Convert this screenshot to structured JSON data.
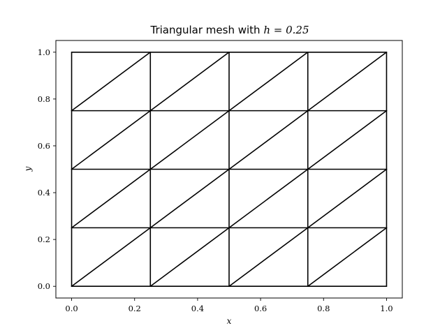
{
  "chart_data": {
    "type": "triangular-mesh",
    "title": {
      "text": "Triangular mesh with ",
      "math": "h = 0.25"
    },
    "xlabel": "x",
    "ylabel": "y",
    "xlim": [
      -0.05,
      1.05
    ],
    "ylim": [
      -0.05,
      1.05
    ],
    "xticks": [
      {
        "value": 0.0,
        "label": "0.0"
      },
      {
        "value": 0.2,
        "label": "0.2"
      },
      {
        "value": 0.4,
        "label": "0.4"
      },
      {
        "value": 0.6,
        "label": "0.6"
      },
      {
        "value": 0.8,
        "label": "0.8"
      },
      {
        "value": 1.0,
        "label": "1.0"
      }
    ],
    "yticks": [
      {
        "value": 0.0,
        "label": "0.0"
      },
      {
        "value": 0.2,
        "label": "0.2"
      },
      {
        "value": 0.4,
        "label": "0.4"
      },
      {
        "value": 0.6,
        "label": "0.6"
      },
      {
        "value": 0.8,
        "label": "0.8"
      },
      {
        "value": 1.0,
        "label": "1.0"
      }
    ],
    "grid": false,
    "mesh": {
      "h": 0.25,
      "x_nodes": [
        0.0,
        0.25,
        0.5,
        0.75,
        1.0
      ],
      "y_nodes": [
        0.0,
        0.25,
        0.5,
        0.75,
        1.0
      ],
      "diagonal": "lower-left to upper-right",
      "edge_color": "#000000"
    }
  }
}
